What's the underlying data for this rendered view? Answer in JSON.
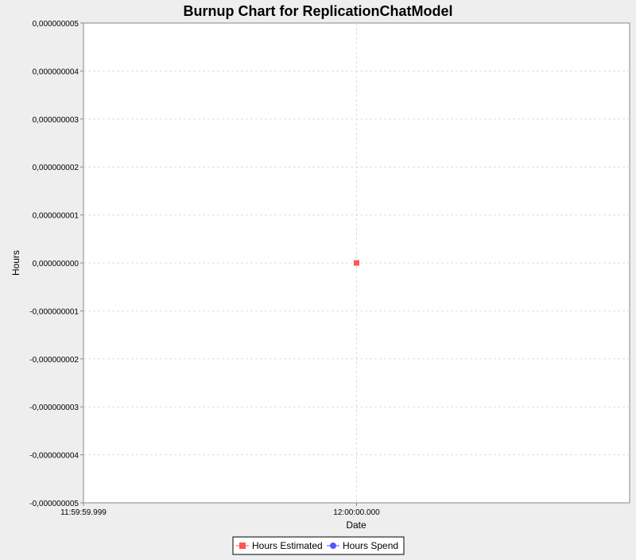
{
  "colors": {
    "background": "#eeeeee",
    "plot_background": "#ffffff",
    "grid": "#dddddd",
    "series_estimated": "#ff5555",
    "series_spend": "#5555ff"
  },
  "chart_data": {
    "type": "line",
    "title": "Burnup Chart for ReplicationChatModel",
    "xlabel": "Date",
    "ylabel": "Hours",
    "ylim": [
      -5e-09,
      5e-09
    ],
    "grid": true,
    "legend_position": "bottom",
    "x_ticks": [
      "11:59:59.999",
      "12:00:00.000"
    ],
    "y_ticks": [
      "0,000000005",
      "0,000000004",
      "0,000000003",
      "0,000000002",
      "0,000000001",
      "0,000000000",
      "-0,000000001",
      "-0,000000002",
      "-0,000000003",
      "-0,000000004",
      "-0,000000005"
    ],
    "series": [
      {
        "name": "Hours Estimated",
        "marker": "square",
        "points": [
          {
            "x": "12:00:00.000",
            "y": 0
          }
        ]
      },
      {
        "name": "Hours Spend",
        "marker": "circle",
        "points": []
      }
    ]
  }
}
